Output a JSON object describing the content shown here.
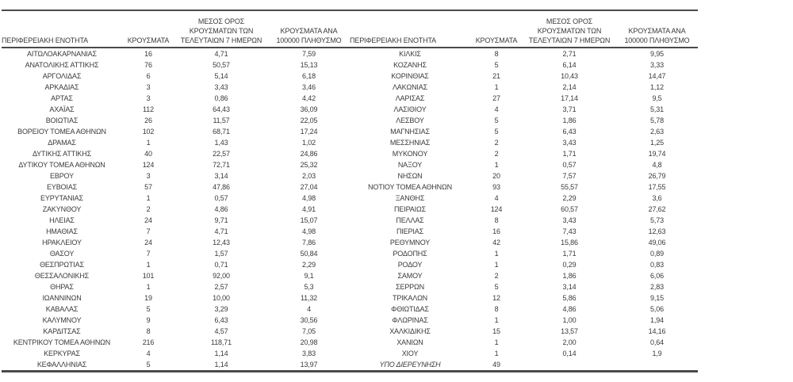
{
  "colors": {
    "text": "#3a3a3a",
    "border": "#4a4a4a",
    "background": "#ffffff"
  },
  "table": {
    "headers": {
      "region": "ΠΕΡΙΦΕΡΕΙΑΚΗ ΕΝΟΤΗΤΑ",
      "cases": "ΚΡΟΥΣΜΑΤΑ",
      "avg7_lines": [
        "ΜΕΣΟΣ ΟΡΟΣ",
        "ΚΡΟΥΣΜΑΤΩΝ ΤΩΝ",
        "ΤΕΛΕΥΤΑΙΩΝ 7 ΗΜΕΡΩΝ"
      ],
      "per100k_lines": [
        "ΚΡΟΥΣΜΑΤΑ ΑΝΑ",
        "100000 ΠΛΗΘΥΣΜΟ"
      ]
    },
    "left_rows": [
      {
        "region": "ΑΙΤΩΛΟΑΚΑΡΝΑΝΙΑΣ",
        "cases": "16",
        "avg7": "4,71",
        "per100k": "7,59"
      },
      {
        "region": "ΑΝΑΤΟΛΙΚΗΣ ΑΤΤΙΚΗΣ",
        "cases": "76",
        "avg7": "50,57",
        "per100k": "15,13"
      },
      {
        "region": "ΑΡΓΟΛΙΔΑΣ",
        "cases": "6",
        "avg7": "5,14",
        "per100k": "6,18"
      },
      {
        "region": "ΑΡΚΑΔΙΑΣ",
        "cases": "3",
        "avg7": "3,43",
        "per100k": "3,46"
      },
      {
        "region": "ΑΡΤΑΣ",
        "cases": "3",
        "avg7": "0,86",
        "per100k": "4,42"
      },
      {
        "region": "ΑΧΑΪΑΣ",
        "cases": "112",
        "avg7": "64,43",
        "per100k": "36,09"
      },
      {
        "region": "ΒΟΙΩΤΙΑΣ",
        "cases": "26",
        "avg7": "11,57",
        "per100k": "22,05"
      },
      {
        "region": "ΒΟΡΕΙΟΥ ΤΟΜΕΑ ΑΘΗΝΩΝ",
        "cases": "102",
        "avg7": "68,71",
        "per100k": "17,24"
      },
      {
        "region": "ΔΡΑΜΑΣ",
        "cases": "1",
        "avg7": "1,43",
        "per100k": "1,02"
      },
      {
        "region": "ΔΥΤΙΚΗΣ ΑΤΤΙΚΗΣ",
        "cases": "40",
        "avg7": "22,57",
        "per100k": "24,86"
      },
      {
        "region": "ΔΥΤΙΚΟΥ ΤΟΜΕΑ ΑΘΗΝΩΝ",
        "cases": "124",
        "avg7": "72,71",
        "per100k": "25,32"
      },
      {
        "region": "ΕΒΡΟΥ",
        "cases": "3",
        "avg7": "3,14",
        "per100k": "2,03"
      },
      {
        "region": "ΕΥΒΟΙΑΣ",
        "cases": "57",
        "avg7": "47,86",
        "per100k": "27,04"
      },
      {
        "region": "ΕΥΡΥΤΑΝΙΑΣ",
        "cases": "1",
        "avg7": "0,57",
        "per100k": "4,98"
      },
      {
        "region": "ΖΑΚΥΝΘΟΥ",
        "cases": "2",
        "avg7": "4,86",
        "per100k": "4,91"
      },
      {
        "region": "ΗΛΕΙΑΣ",
        "cases": "24",
        "avg7": "9,71",
        "per100k": "15,07"
      },
      {
        "region": "ΗΜΑΘΙΑΣ",
        "cases": "7",
        "avg7": "4,71",
        "per100k": "4,98"
      },
      {
        "region": "ΗΡΑΚΛΕΙΟΥ",
        "cases": "24",
        "avg7": "12,43",
        "per100k": "7,86"
      },
      {
        "region": "ΘΑΣΟΥ",
        "cases": "7",
        "avg7": "1,57",
        "per100k": "50,84"
      },
      {
        "region": "ΘΕΣΠΡΩΤΙΑΣ",
        "cases": "1",
        "avg7": "0,71",
        "per100k": "2,29"
      },
      {
        "region": "ΘΕΣΣΑΛΟΝΙΚΗΣ",
        "cases": "101",
        "avg7": "92,00",
        "per100k": "9,1"
      },
      {
        "region": "ΘΗΡΑΣ",
        "cases": "1",
        "avg7": "2,57",
        "per100k": "5,3"
      },
      {
        "region": "ΙΩΑΝΝΙΝΩΝ",
        "cases": "19",
        "avg7": "10,00",
        "per100k": "11,32"
      },
      {
        "region": "ΚΑΒΑΛΑΣ",
        "cases": "5",
        "avg7": "3,29",
        "per100k": "4"
      },
      {
        "region": "ΚΑΛΥΜΝΟΥ",
        "cases": "9",
        "avg7": "6,43",
        "per100k": "30,56"
      },
      {
        "region": "ΚΑΡΔΙΤΣΑΣ",
        "cases": "8",
        "avg7": "4,57",
        "per100k": "7,05"
      },
      {
        "region": "ΚΕΝΤΡΙΚΟΥ ΤΟΜΕΑ ΑΘΗΝΩΝ",
        "cases": "216",
        "avg7": "118,71",
        "per100k": "20,98"
      },
      {
        "region": "ΚΕΡΚΥΡΑΣ",
        "cases": "4",
        "avg7": "1,14",
        "per100k": "3,83"
      },
      {
        "region": "ΚΕΦΑΛΛΗΝΙΑΣ",
        "cases": "5",
        "avg7": "1,14",
        "per100k": "13,97"
      }
    ],
    "right_rows": [
      {
        "region": "ΚΙΛΚΙΣ",
        "cases": "8",
        "avg7": "2,71",
        "per100k": "9,95"
      },
      {
        "region": "ΚΟΖΑΝΗΣ",
        "cases": "5",
        "avg7": "6,14",
        "per100k": "3,33"
      },
      {
        "region": "ΚΟΡΙΝΘΙΑΣ",
        "cases": "21",
        "avg7": "10,43",
        "per100k": "14,47"
      },
      {
        "region": "ΛΑΚΩΝΙΑΣ",
        "cases": "1",
        "avg7": "2,14",
        "per100k": "1,12"
      },
      {
        "region": "ΛΑΡΙΣΑΣ",
        "cases": "27",
        "avg7": "17,14",
        "per100k": "9,5"
      },
      {
        "region": "ΛΑΣΙΘΙΟΥ",
        "cases": "4",
        "avg7": "3,71",
        "per100k": "5,31"
      },
      {
        "region": "ΛΕΣΒΟΥ",
        "cases": "5",
        "avg7": "1,86",
        "per100k": "5,78"
      },
      {
        "region": "ΜΑΓΝΗΣΙΑΣ",
        "cases": "5",
        "avg7": "6,43",
        "per100k": "2,63"
      },
      {
        "region": "ΜΕΣΣΗΝΙΑΣ",
        "cases": "2",
        "avg7": "3,43",
        "per100k": "1,25"
      },
      {
        "region": "ΜΥΚΟΝΟΥ",
        "cases": "2",
        "avg7": "1,71",
        "per100k": "19,74"
      },
      {
        "region": "ΝΑΞΟΥ",
        "cases": "1",
        "avg7": "0,57",
        "per100k": "4,8"
      },
      {
        "region": "ΝΗΣΩΝ",
        "cases": "20",
        "avg7": "7,57",
        "per100k": "26,79"
      },
      {
        "region": "ΝΟΤΙΟΥ ΤΟΜΕΑ ΑΘΗΝΩΝ",
        "cases": "93",
        "avg7": "55,57",
        "per100k": "17,55"
      },
      {
        "region": "ΞΑΝΘΗΣ",
        "cases": "4",
        "avg7": "2,29",
        "per100k": "3,6"
      },
      {
        "region": "ΠΕΙΡΑΙΩΣ",
        "cases": "124",
        "avg7": "60,57",
        "per100k": "27,62"
      },
      {
        "region": "ΠΕΛΛΑΣ",
        "cases": "8",
        "avg7": "3,43",
        "per100k": "5,73"
      },
      {
        "region": "ΠΙΕΡΙΑΣ",
        "cases": "16",
        "avg7": "7,43",
        "per100k": "12,63"
      },
      {
        "region": "ΡΕΘΥΜΝΟΥ",
        "cases": "42",
        "avg7": "15,86",
        "per100k": "49,06"
      },
      {
        "region": "ΡΟΔΟΠΗΣ",
        "cases": "1",
        "avg7": "1,71",
        "per100k": "0,89"
      },
      {
        "region": "ΡΟΔΟΥ",
        "cases": "1",
        "avg7": "0,29",
        "per100k": "0,83"
      },
      {
        "region": "ΣΑΜΟΥ",
        "cases": "2",
        "avg7": "1,86",
        "per100k": "6,06"
      },
      {
        "region": "ΣΕΡΡΩΝ",
        "cases": "5",
        "avg7": "3,14",
        "per100k": "2,83"
      },
      {
        "region": "ΤΡΙΚΑΛΩΝ",
        "cases": "12",
        "avg7": "5,86",
        "per100k": "9,15"
      },
      {
        "region": "ΦΘΙΩΤΙΔΑΣ",
        "cases": "8",
        "avg7": "4,86",
        "per100k": "5,06"
      },
      {
        "region": "ΦΛΩΡΙΝΑΣ",
        "cases": "1",
        "avg7": "1,00",
        "per100k": "1,94"
      },
      {
        "region": "ΧΑΛΚΙΔΙΚΗΣ",
        "cases": "15",
        "avg7": "13,57",
        "per100k": "14,16"
      },
      {
        "region": "ΧΑΝΙΩΝ",
        "cases": "1",
        "avg7": "2,00",
        "per100k": "0,64"
      },
      {
        "region": "ΧΙΟΥ",
        "cases": "1",
        "avg7": "0,14",
        "per100k": "1,9"
      },
      {
        "region": "ΥΠΟ ΔΙΕΡΕΥΝΗΣΗ",
        "cases": "49",
        "avg7": "",
        "per100k": "",
        "italic": true
      }
    ]
  }
}
